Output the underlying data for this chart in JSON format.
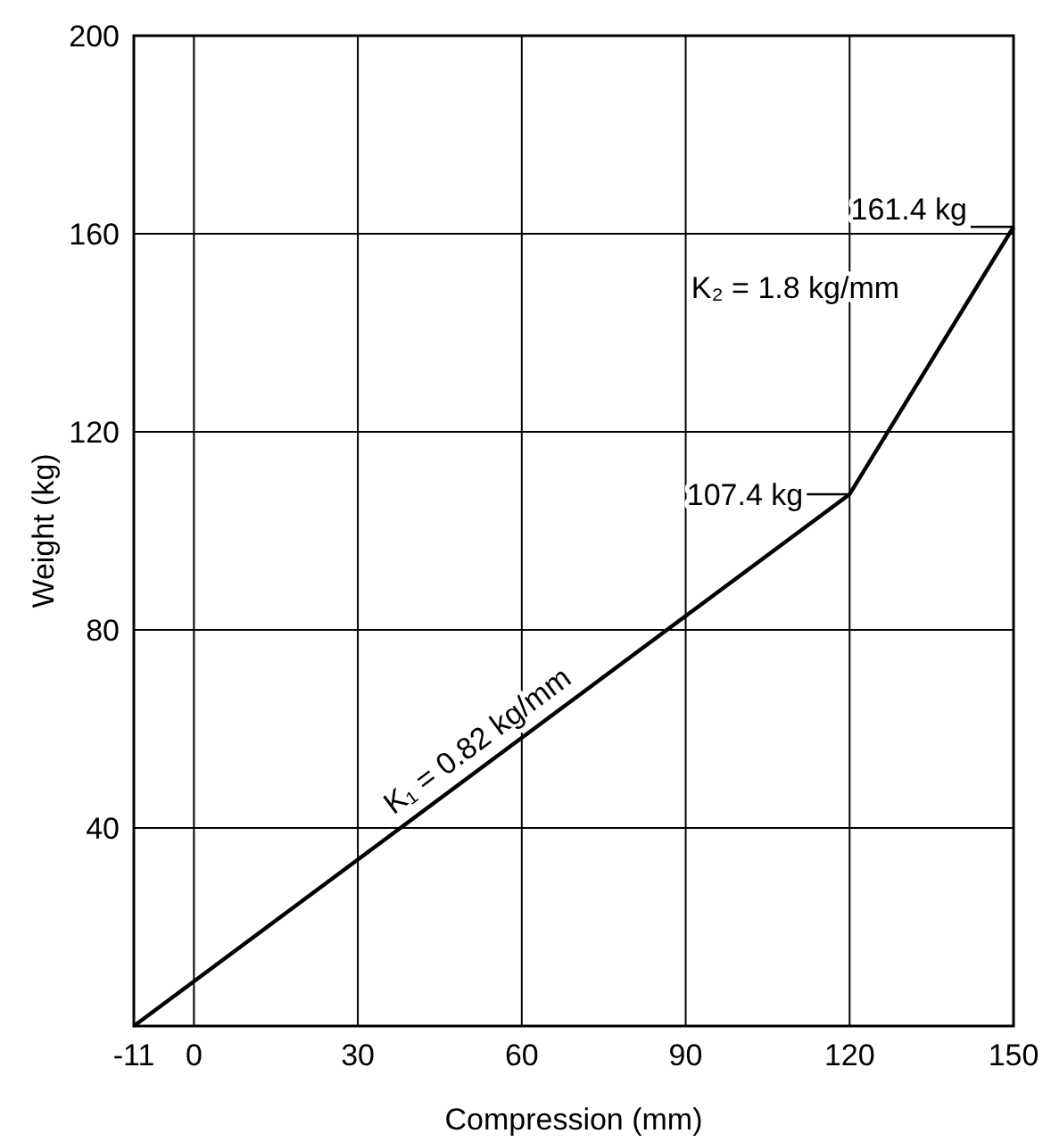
{
  "chart_data": {
    "type": "line",
    "xlabel": "Compression (mm)",
    "ylabel": "Weight (kg)",
    "x": [
      -11,
      120,
      150
    ],
    "series": [
      {
        "color": "#000000",
        "values": [
          0,
          107.4,
          161.4
        ]
      }
    ],
    "xlim": [
      -11,
      150
    ],
    "xticks": [
      -11,
      0,
      30,
      60,
      90,
      120,
      150
    ],
    "ylim": [
      0,
      200
    ],
    "yticks": [
      {
        "value": 0,
        "label": null
      },
      40,
      80,
      120,
      160,
      200
    ],
    "grid": true,
    "annotations": [
      {
        "text": "161.4 kg",
        "x": 150,
        "y": 161.4
      },
      {
        "text": "107.4 kg",
        "x": 120,
        "y": 107.4
      },
      "K₂ = 1.8 kg/mm",
      "K₁ = 0.82 kg/mm"
    ]
  }
}
